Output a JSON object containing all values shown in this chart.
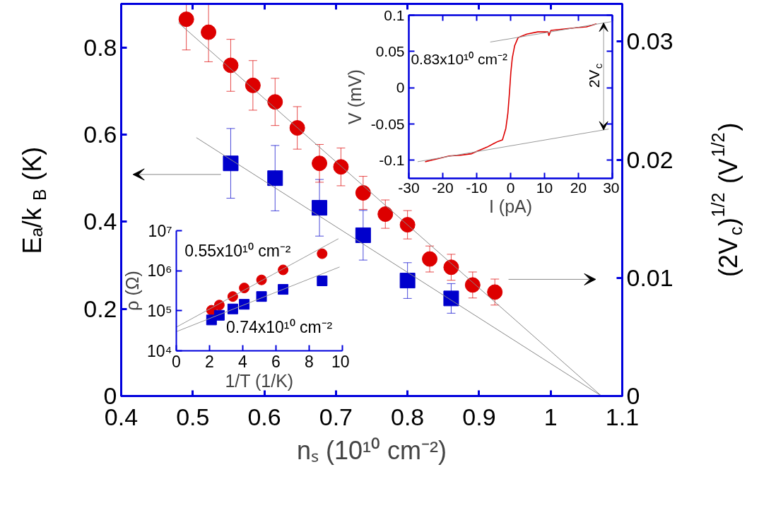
{
  "chart_data": [
    {
      "type": "scatter",
      "xlabel": "nₛ (10¹⁰ cm⁻²)",
      "ylabel": "Eₐ/k$_{B}$ (K)",
      "y2label": "(2V$_{c}$)$^{1/2}$ (V$^{1/2}$)",
      "xlim": [
        0.4,
        1.1
      ],
      "xticks": [
        0.4,
        0.5,
        0.6,
        0.7,
        0.8,
        0.9,
        1,
        1.1
      ],
      "ylim": [
        0,
        0.9
      ],
      "yticks": [
        0,
        0.2,
        0.4,
        0.6,
        0.8
      ],
      "y2lim": [
        0,
        0.0332
      ],
      "y2ticks": [
        0,
        0.01,
        0.02,
        0.03
      ],
      "series": [
        {
          "marker": "square",
          "color": "#0000cc",
          "x": [
            0.553,
            0.615,
            0.677,
            0.738,
            0.8,
            0.861
          ],
          "values": [
            0.534,
            0.5,
            0.432,
            0.369,
            0.265,
            0.224
          ],
          "errors": [
            0.08,
            0.075,
            0.065,
            0.057,
            0.041,
            0.034
          ]
        },
        {
          "marker": "circle",
          "color": "#dd0000",
          "axis": "y2",
          "x": [
            0.491,
            0.522,
            0.553,
            0.584,
            0.615,
            0.646,
            0.677,
            0.707,
            0.738,
            0.769,
            0.8,
            0.831,
            0.861,
            0.891,
            0.922
          ],
          "values": [
            0.0319,
            0.0308,
            0.028,
            0.0263,
            0.0249,
            0.0227,
            0.0197,
            0.0194,
            0.0172,
            0.0154,
            0.0145,
            0.0116,
            0.0109,
            0.0094,
            0.0088
          ],
          "errors": [
            [
              0.0293,
              0.0332
            ],
            [
              0.0283,
              0.0332
            ],
            0.0022,
            0.0021,
            0.002,
            0.0018,
            0.0016,
            0.0016,
            0.0014,
            0.0012,
            0.0012,
            0.0011,
            0.0011,
            0.0011,
            0.0011
          ]
        },
        {
          "type": "line",
          "color": "#888888",
          "x": [
            0.505,
            1.071
          ],
          "values": [
            0.593,
            0
          ]
        },
        {
          "type": "line",
          "color": "#888888",
          "axis": "y2",
          "x": [
            0.48,
            1.071
          ],
          "values": [
            0.0316,
            0
          ]
        }
      ]
    },
    {
      "type": "line",
      "xlabel": "I (pA)",
      "ylabel": "V (mV)",
      "xlim": [
        -30,
        30
      ],
      "xticks": [
        -30,
        -20,
        -10,
        0,
        10,
        20,
        30
      ],
      "ylim": [
        -0.125,
        0.1
      ],
      "yticks": [
        -0.1,
        -0.05,
        0,
        0.05,
        0.1
      ],
      "annotations": [
        "0.83x10¹⁰ cm⁻²",
        "2V$_{c}$"
      ],
      "series": [
        {
          "color": "#dd0000",
          "x": [
            -25.2,
            -23.3,
            -20.7,
            -18.1,
            -14.8,
            -11.5,
            -9.6,
            -7.0,
            -5.0,
            -3.7,
            -2.4,
            -1.4,
            -0.8,
            -0.3,
            0.07,
            0.5,
            1.2,
            2.2,
            4.8,
            8.0,
            11.0,
            11.3,
            11.9,
            15.9,
            19.8,
            22.4,
            25.3
          ],
          "values": [
            -0.102,
            -0.1,
            -0.097,
            -0.094,
            -0.093,
            -0.091,
            -0.087,
            -0.082,
            -0.077,
            -0.074,
            -0.072,
            -0.056,
            -0.035,
            -0.005,
            0.021,
            0.041,
            0.058,
            0.069,
            0.074,
            0.077,
            0.077,
            0.072,
            0.079,
            0.081,
            0.083,
            0.084,
            0.088
          ]
        },
        {
          "color": "#999999",
          "x": [
            -27.4,
            28.9
          ],
          "values": [
            -0.102,
            -0.057
          ]
        },
        {
          "color": "#999999",
          "x": [
            -6.0,
            29.6
          ],
          "values": [
            0.063,
            0.091
          ]
        }
      ]
    },
    {
      "type": "scatter",
      "log": "y",
      "xlabel": "1/T (1/K)",
      "ylabel": "ρ (Ω)",
      "xlim": [
        0,
        10
      ],
      "xticks": [
        0,
        2,
        4,
        6,
        8,
        10
      ],
      "ylim": [
        10000,
        10000000
      ],
      "yticks": [
        {
          "value": 10000,
          "label": "10⁴"
        },
        {
          "value": 100000,
          "label": "10⁵"
        },
        {
          "value": 1000000,
          "label": "10⁶"
        },
        {
          "value": 10000000,
          "label": "10⁷"
        }
      ],
      "annotations": [
        "0.55x10¹⁰ cm⁻²",
        "0.74x10¹⁰ cm⁻²"
      ],
      "series": [
        {
          "marker": "circle",
          "color": "#dd0000",
          "x": [
            2.12,
            2.59,
            3.4,
            4.09,
            5.13,
            6.43,
            8.78
          ],
          "values": [
            103000,
            139000,
            227000,
            371000,
            590000,
            1050000,
            2660000
          ]
        },
        {
          "marker": "square",
          "color": "#0000cc",
          "x": [
            2.12,
            2.59,
            3.4,
            4.09,
            5.13,
            6.43,
            8.78
          ],
          "values": [
            59000,
            77000,
            111000,
            145000,
            227000,
            342000,
            558000
          ]
        },
        {
          "type": "line",
          "color": "#999999",
          "x": [
            0,
            9.76
          ],
          "values": [
            39000,
            6300000
          ]
        },
        {
          "type": "line",
          "color": "#999999",
          "x": [
            0,
            9.83
          ],
          "values": [
            30000,
            1240000
          ]
        }
      ]
    }
  ]
}
